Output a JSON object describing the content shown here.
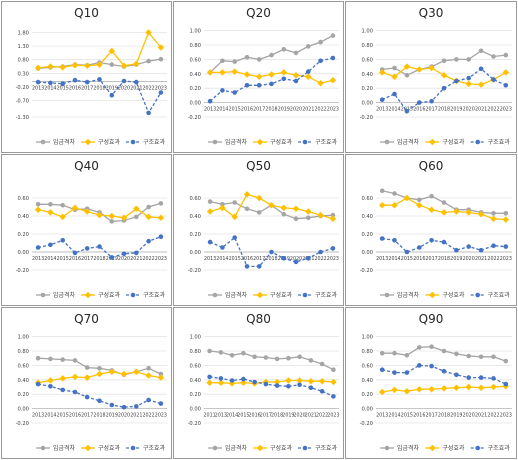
{
  "colors": {
    "wage_gap": "#a5a5a5",
    "composition": "#ffc000",
    "structure": "#4472c4"
  },
  "legend": [
    "임금격차",
    "구성효과",
    "구조효과"
  ],
  "chart_data": [
    {
      "type": "line",
      "title": "Q10",
      "x": [
        "2013",
        "2014",
        "2015",
        "2016",
        "2017",
        "2018",
        "2019",
        "2020",
        "2021",
        "2022",
        "2023"
      ],
      "ylim": [
        -1.3,
        2.0
      ],
      "ticks": [
        "-1.30",
        "-0.70",
        "-0.20",
        "0.30",
        "0.80",
        "1.30",
        "1.80"
      ],
      "tick_values": [
        -1.3,
        -0.7,
        -0.2,
        0.3,
        0.8,
        1.3,
        1.8
      ],
      "series": [
        {
          "name": "임금격차",
          "values": [
            0.48,
            0.52,
            0.55,
            0.62,
            0.6,
            0.7,
            0.62,
            0.55,
            0.62,
            0.75,
            0.82
          ]
        },
        {
          "name": "구성효과",
          "values": [
            0.5,
            0.55,
            0.52,
            0.6,
            0.58,
            0.62,
            1.12,
            0.58,
            0.65,
            1.8,
            1.25
          ]
        },
        {
          "name": "구조효과",
          "values": [
            -0.02,
            -0.05,
            -0.08,
            0.05,
            -0.02,
            0.08,
            -0.5,
            0.02,
            -0.02,
            -1.15,
            -0.4
          ]
        }
      ]
    },
    {
      "type": "line",
      "title": "Q20",
      "x": [
        "2013",
        "2014",
        "2015",
        "2016",
        "2017",
        "2018",
        "2019",
        "2020",
        "2021",
        "2022",
        "2023"
      ],
      "ylim": [
        -0.2,
        1.05
      ],
      "ticks": [
        "-0.20",
        "0.00",
        "0.20",
        "0.40",
        "0.60",
        "0.80",
        "1.00"
      ],
      "tick_values": [
        -0.2,
        0,
        0.2,
        0.4,
        0.6,
        0.8,
        1.0
      ],
      "series": [
        {
          "name": "임금격차",
          "values": [
            0.42,
            0.58,
            0.57,
            0.63,
            0.6,
            0.66,
            0.74,
            0.69,
            0.78,
            0.84,
            0.93
          ]
        },
        {
          "name": "구성효과",
          "values": [
            0.42,
            0.42,
            0.43,
            0.39,
            0.36,
            0.39,
            0.42,
            0.38,
            0.36,
            0.27,
            0.31
          ]
        },
        {
          "name": "구조효과",
          "values": [
            0.02,
            0.17,
            0.14,
            0.24,
            0.24,
            0.26,
            0.33,
            0.3,
            0.43,
            0.58,
            0.62
          ]
        }
      ]
    },
    {
      "type": "line",
      "title": "Q30",
      "x": [
        "2013",
        "2014",
        "2015",
        "2016",
        "2017",
        "2018",
        "2019",
        "2020",
        "2021",
        "2022",
        "2023"
      ],
      "ylim": [
        -0.2,
        1.05
      ],
      "ticks": [
        "-0.20",
        "0.00",
        "0.20",
        "0.40",
        "0.60",
        "0.80",
        "1.00"
      ],
      "tick_values": [
        -0.2,
        0,
        0.2,
        0.4,
        0.6,
        0.8,
        1.0
      ],
      "series": [
        {
          "name": "임금격차",
          "values": [
            0.46,
            0.48,
            0.38,
            0.46,
            0.5,
            0.58,
            0.6,
            0.6,
            0.72,
            0.64,
            0.66
          ]
        },
        {
          "name": "구성효과",
          "values": [
            0.42,
            0.36,
            0.5,
            0.46,
            0.48,
            0.38,
            0.3,
            0.26,
            0.25,
            0.32,
            0.42
          ]
        },
        {
          "name": "구조효과",
          "values": [
            0.04,
            0.12,
            -0.12,
            0.0,
            0.02,
            0.2,
            0.3,
            0.34,
            0.47,
            0.32,
            0.24
          ]
        }
      ]
    },
    {
      "type": "line",
      "title": "Q40",
      "x": [
        "2013",
        "2014",
        "2015",
        "2016",
        "2017",
        "2018",
        "2019",
        "2020",
        "2021",
        "2022",
        "2023"
      ],
      "ylim": [
        -0.2,
        0.8
      ],
      "ticks": [
        "-0.20",
        "0.00",
        "0.20",
        "0.40",
        "0.60"
      ],
      "tick_values": [
        -0.2,
        0,
        0.2,
        0.4,
        0.6
      ],
      "series": [
        {
          "name": "임금격차",
          "values": [
            0.53,
            0.53,
            0.52,
            0.47,
            0.48,
            0.44,
            0.34,
            0.35,
            0.39,
            0.5,
            0.54
          ]
        },
        {
          "name": "구성효과",
          "values": [
            0.47,
            0.44,
            0.39,
            0.49,
            0.45,
            0.41,
            0.4,
            0.38,
            0.48,
            0.39,
            0.38
          ]
        },
        {
          "name": "구조효과",
          "values": [
            0.05,
            0.08,
            0.13,
            -0.01,
            0.04,
            0.06,
            -0.06,
            -0.02,
            -0.01,
            0.12,
            0.17
          ]
        }
      ]
    },
    {
      "type": "line",
      "title": "Q50",
      "x": [
        "2013",
        "2014",
        "2015",
        "2016",
        "2017",
        "2018",
        "2019",
        "2020",
        "2021",
        "2022",
        "2023"
      ],
      "ylim": [
        -0.2,
        0.8
      ],
      "ticks": [
        "-0.20",
        "0.00",
        "0.20",
        "0.40",
        "0.60"
      ],
      "tick_values": [
        -0.2,
        0,
        0.2,
        0.4,
        0.6
      ],
      "series": [
        {
          "name": "임금격차",
          "values": [
            0.56,
            0.53,
            0.55,
            0.48,
            0.44,
            0.52,
            0.42,
            0.37,
            0.38,
            0.4,
            0.41
          ]
        },
        {
          "name": "구성효과",
          "values": [
            0.45,
            0.49,
            0.39,
            0.64,
            0.6,
            0.52,
            0.49,
            0.48,
            0.45,
            0.41,
            0.37
          ]
        },
        {
          "name": "구조효과",
          "values": [
            0.11,
            0.05,
            0.16,
            -0.16,
            -0.16,
            0.0,
            -0.07,
            -0.11,
            -0.07,
            0.0,
            0.04
          ]
        }
      ]
    },
    {
      "type": "line",
      "title": "Q60",
      "x": [
        "2013",
        "2014",
        "2015",
        "2016",
        "2017",
        "2018",
        "2019",
        "2020",
        "2021",
        "2022",
        "2023"
      ],
      "ylim": [
        -0.2,
        0.8
      ],
      "ticks": [
        "-0.20",
        "0.00",
        "0.20",
        "0.40",
        "0.60"
      ],
      "tick_values": [
        -0.2,
        0,
        0.2,
        0.4,
        0.6
      ],
      "series": [
        {
          "name": "임금격차",
          "values": [
            0.68,
            0.65,
            0.6,
            0.58,
            0.62,
            0.55,
            0.47,
            0.47,
            0.44,
            0.43,
            0.43
          ]
        },
        {
          "name": "구성효과",
          "values": [
            0.52,
            0.52,
            0.6,
            0.52,
            0.47,
            0.44,
            0.45,
            0.44,
            0.42,
            0.37,
            0.36
          ]
        },
        {
          "name": "구조효과",
          "values": [
            0.15,
            0.13,
            0.0,
            0.05,
            0.13,
            0.11,
            0.02,
            0.06,
            0.02,
            0.07,
            0.06
          ]
        }
      ]
    },
    {
      "type": "line",
      "title": "Q70",
      "x": [
        "2013",
        "2014",
        "2015",
        "2016",
        "2017",
        "2018",
        "2019",
        "2020",
        "2021",
        "2022",
        "2023"
      ],
      "ylim": [
        -0.2,
        1.05
      ],
      "ticks": [
        "-0.20",
        "0.00",
        "0.20",
        "0.40",
        "0.60",
        "0.80",
        "1.00"
      ],
      "tick_values": [
        -0.2,
        0,
        0.2,
        0.4,
        0.6,
        0.8,
        1.0
      ],
      "series": [
        {
          "name": "임금격차",
          "values": [
            0.7,
            0.69,
            0.68,
            0.67,
            0.57,
            0.56,
            0.53,
            0.47,
            0.51,
            0.56,
            0.48
          ]
        },
        {
          "name": "구성효과",
          "values": [
            0.36,
            0.39,
            0.42,
            0.44,
            0.43,
            0.48,
            0.51,
            0.48,
            0.51,
            0.46,
            0.43
          ]
        },
        {
          "name": "구조효과",
          "values": [
            0.34,
            0.31,
            0.26,
            0.23,
            0.16,
            0.11,
            0.05,
            0.02,
            0.03,
            0.12,
            0.07
          ]
        }
      ]
    },
    {
      "type": "line",
      "title": "Q80",
      "x": [
        "2011",
        "2013",
        "2014",
        "2015",
        "2016",
        "2017",
        "2018",
        "2019",
        "2020",
        "2021",
        "2022",
        "2023"
      ],
      "ylim": [
        -0.2,
        1.05
      ],
      "ticks": [
        "-0.20",
        "0.00",
        "0.20",
        "0.40",
        "0.60",
        "0.80",
        "1.00"
      ],
      "tick_values": [
        -0.2,
        0,
        0.2,
        0.4,
        0.6,
        0.8,
        1.0
      ],
      "series": [
        {
          "name": "임금격차",
          "values": [
            0.8,
            0.78,
            0.74,
            0.77,
            0.72,
            0.71,
            0.69,
            0.7,
            0.72,
            0.67,
            0.62,
            0.54
          ]
        },
        {
          "name": "구성효과",
          "values": [
            0.36,
            0.36,
            0.35,
            0.36,
            0.35,
            0.37,
            0.37,
            0.39,
            0.39,
            0.38,
            0.38,
            0.37
          ]
        },
        {
          "name": "구조효과",
          "values": [
            0.44,
            0.42,
            0.39,
            0.41,
            0.37,
            0.34,
            0.32,
            0.31,
            0.33,
            0.29,
            0.24,
            0.17
          ]
        }
      ]
    },
    {
      "type": "line",
      "title": "Q90",
      "x": [
        "2013",
        "2014",
        "2015",
        "2016",
        "2017",
        "2018",
        "2019",
        "2020",
        "2021",
        "2022",
        "2023"
      ],
      "ylim": [
        -0.2,
        1.05
      ],
      "ticks": [
        "-0.20",
        "0.00",
        "0.20",
        "0.40",
        "0.60",
        "0.80",
        "1.00"
      ],
      "tick_values": [
        -0.2,
        0,
        0.2,
        0.4,
        0.6,
        0.8,
        1.0
      ],
      "series": [
        {
          "name": "임금격차",
          "values": [
            0.77,
            0.77,
            0.74,
            0.85,
            0.86,
            0.8,
            0.76,
            0.73,
            0.72,
            0.72,
            0.66
          ]
        },
        {
          "name": "구성효과",
          "values": [
            0.23,
            0.26,
            0.24,
            0.27,
            0.27,
            0.28,
            0.29,
            0.3,
            0.29,
            0.3,
            0.31
          ]
        },
        {
          "name": "구조효과",
          "values": [
            0.54,
            0.5,
            0.5,
            0.6,
            0.59,
            0.52,
            0.47,
            0.43,
            0.43,
            0.42,
            0.34
          ]
        }
      ]
    }
  ]
}
